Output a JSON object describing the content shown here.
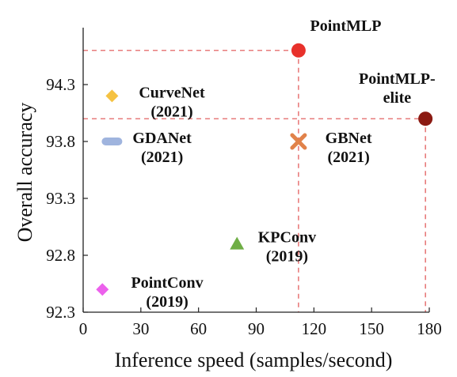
{
  "chart_data": {
    "type": "scatter",
    "xlabel": "Inference speed (samples/second)",
    "ylabel": "Overall accuracy",
    "xlim": [
      0,
      180
    ],
    "ylim": [
      92.3,
      94.8
    ],
    "x_ticks": [
      0,
      30,
      60,
      90,
      120,
      150,
      180
    ],
    "y_ticks": [
      92.3,
      92.8,
      93.3,
      93.8,
      94.3
    ],
    "y_tick_labels": [
      "92.3",
      "92.8",
      "93.3",
      "93.8",
      "94.3"
    ],
    "grid": false,
    "reference_lines": {
      "color": "#e05050",
      "style": "dashed"
    },
    "points": [
      {
        "label": [
          "PointMLP"
        ],
        "x": 112,
        "y": 94.6,
        "marker": "circle",
        "color": "#e8312b",
        "refline": true,
        "label_pos": "top-right"
      },
      {
        "label": [
          "PointMLP-",
          "elite"
        ],
        "x": 178,
        "y": 94.0,
        "marker": "circle",
        "color": "#8b1a12",
        "refline": true,
        "label_pos": "top-left"
      },
      {
        "label": [
          "CurveNet",
          "(2021)"
        ],
        "x": 15,
        "y": 94.2,
        "marker": "diamond",
        "color": "#f5c242",
        "label_pos": "right"
      },
      {
        "label": [
          "GDANet",
          "(2021)"
        ],
        "x": 15,
        "y": 93.8,
        "marker": "bar",
        "color": "#9fb4de",
        "label_pos": "right"
      },
      {
        "label": [
          "GBNet",
          "(2021)"
        ],
        "x": 112,
        "y": 93.8,
        "marker": "x",
        "color": "#e1824a",
        "label_pos": "right"
      },
      {
        "label": [
          "KPConv",
          "(2019)"
        ],
        "x": 80,
        "y": 92.9,
        "marker": "triangle",
        "color": "#6fae45",
        "label_pos": "right-up"
      },
      {
        "label": [
          "PointConv",
          "(2019)"
        ],
        "x": 10,
        "y": 92.5,
        "marker": "diamond",
        "color": "#ec61ec",
        "label_pos": "right-up"
      }
    ]
  }
}
